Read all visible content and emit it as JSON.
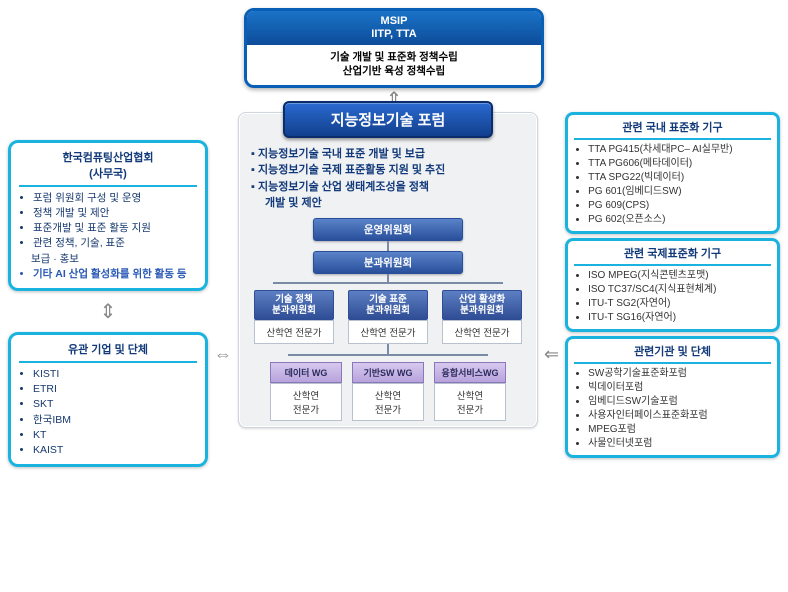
{
  "colors": {
    "deepBlue": "#0d4c9a",
    "midBlue": "#1a73c7",
    "cyanBorder": "#1ab3e0",
    "navyText": "#123a7a",
    "panelBg": "#f0f1f3",
    "nodeBlueTop": "#5a83c9",
    "nodeBlueBot": "#294f9b",
    "wgTop": "#d6c9ee",
    "wgBot": "#b7a3dc",
    "line": "#7a8ca5",
    "arrowGrey": "#888888"
  },
  "topBox": {
    "header1": "MSIP",
    "header2": "IITP, TTA",
    "body1": "기술 개발 및 표준화 정책수립",
    "body2": "산업기반 육성 정책수립"
  },
  "leftTop": {
    "title1": "한국컴퓨팅산업협회",
    "title2": "(사무국)",
    "items": [
      "포럼 위원회 구성 및 운영",
      "정책 개발 및 제안",
      "표준개발 및 표준 활동 지원",
      "관련 정책, 기술, 표준",
      "보급 · 홍보"
    ],
    "hl": "기타 AI 산업 활성화를 위한 활동 등"
  },
  "leftBottom": {
    "title": "유관 기업 및 단체",
    "items": [
      "KISTI",
      "ETRI",
      "SKT",
      "한국IBM",
      "KT",
      "KAIST"
    ]
  },
  "center": {
    "title": "지능정보기술 포럼",
    "bullets": [
      "지능정보기술 국내 표준 개발 및 보급",
      "지능정보기술 국제 표준활동 지원 및 추진",
      "지능정보기술 산업 생태계조성을 정책"
    ],
    "bulletsIndent": "개발 및 제안",
    "org": {
      "top": "운영위원회",
      "mid": "분과위원회",
      "subs": [
        {
          "head": "기술 정책\n분과위원회",
          "body": "산학연 전문가"
        },
        {
          "head": "기술 표준\n분과위원회",
          "body": "산학연 전문가"
        },
        {
          "head": "산업 활성화\n분과위원회",
          "body": "산학연 전문가"
        }
      ],
      "wgs": [
        {
          "head": "데이터 WG",
          "body": "산학연\n전문가"
        },
        {
          "head": "기반SW WG",
          "body": "산학연\n전문가"
        },
        {
          "head": "융합서비스WG",
          "body": "산학연\n전문가"
        }
      ]
    }
  },
  "right": [
    {
      "title": "관련 국내 표준화 기구",
      "items": [
        "TTA PG415(차세대PC– AI실무반)",
        "TTA PG606(메타데이터)",
        "TTA SPG22(빅데이터)",
        "PG 601(임베디드SW)",
        "PG 609(CPS)",
        "PG 602(오픈소스)"
      ]
    },
    {
      "title": "관련 국제표준화 기구",
      "items": [
        "ISO MPEG(지식콘텐츠포맷)",
        "ISO TC37/SC4(지식표현체계)",
        "ITU-T SG2(자연어)",
        "ITU-T SG16(자연어)"
      ]
    },
    {
      "title": "관련기관 및 단체",
      "items": [
        "SW공학기술표준화포럼",
        "빅데이터포럼",
        "임베디드SW기술포럼",
        "사용자인터페이스표준화포럼",
        "MPEG포럼",
        "사물인터넷포럼"
      ]
    }
  ]
}
